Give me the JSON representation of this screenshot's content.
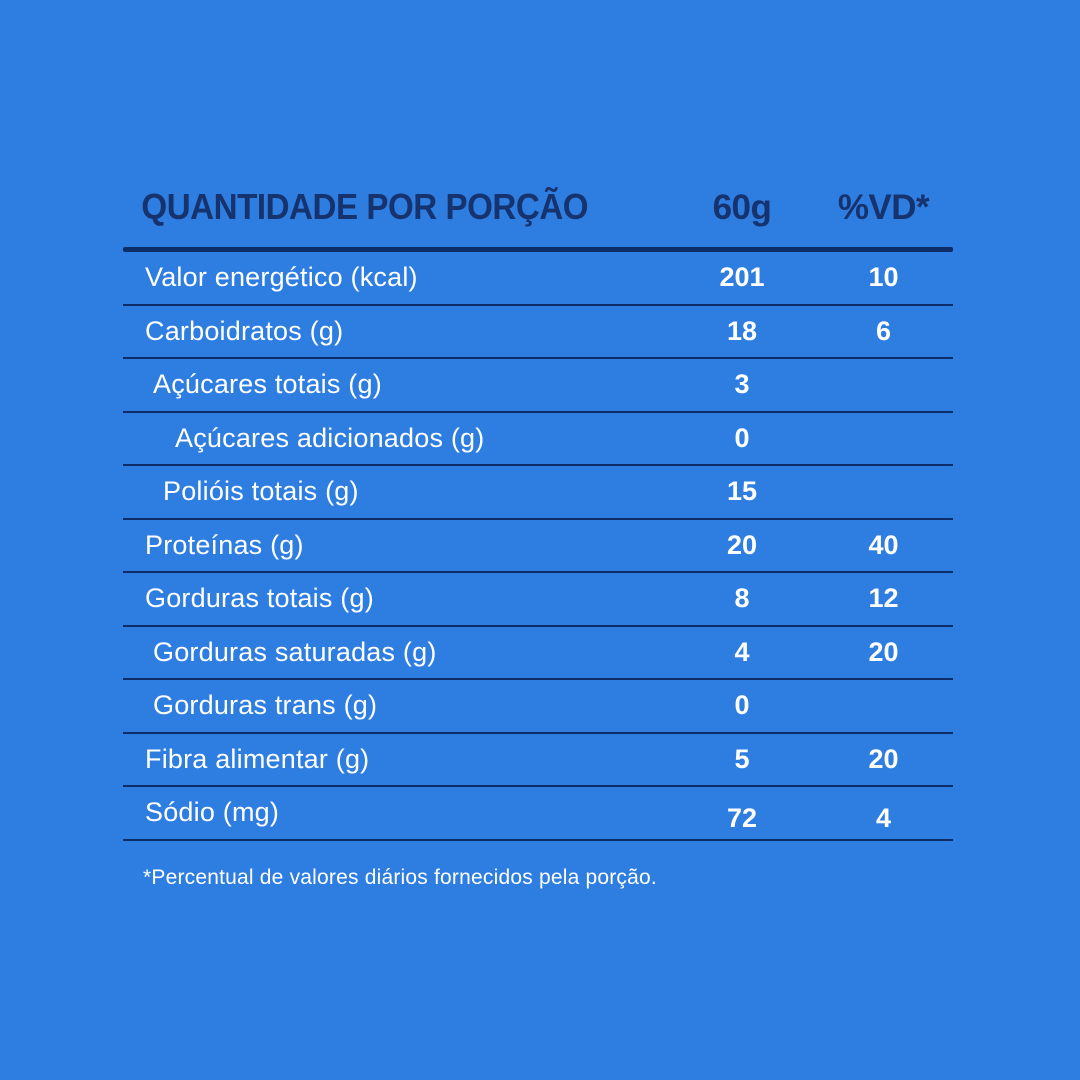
{
  "theme": {
    "background": "#2e7de1",
    "divider_color": "#0c2d67",
    "header_text_color": "#16336e",
    "body_text_color": "#ffffff"
  },
  "header": {
    "title": "QUANTIDADE POR PORÇÃO",
    "serving_column": "60g",
    "daily_value_column": "%VD*"
  },
  "rows": [
    {
      "label": "Valor energético (kcal)",
      "amount": "201",
      "daily_value": "10",
      "level": 0
    },
    {
      "label": "Carboidratos (g)",
      "amount": "18",
      "daily_value": "6",
      "level": 0
    },
    {
      "label": "Açúcares totais (g)",
      "amount": "3",
      "daily_value": "",
      "level": 1
    },
    {
      "label": "Açúcares adicionados (g)",
      "amount": "0",
      "daily_value": "",
      "level": 3
    },
    {
      "label": "Polióis totais (g)",
      "amount": "15",
      "daily_value": "",
      "level": 2
    },
    {
      "label": "Proteínas (g)",
      "amount": "20",
      "daily_value": "40",
      "level": 0
    },
    {
      "label": "Gorduras totais (g)",
      "amount": "8",
      "daily_value": "12",
      "level": 0
    },
    {
      "label": "Gorduras saturadas (g)",
      "amount": "4",
      "daily_value": "20",
      "level": 1
    },
    {
      "label": "Gorduras trans (g)",
      "amount": "0",
      "daily_value": "",
      "level": 1
    },
    {
      "label": "Fibra alimentar (g)",
      "amount": "5",
      "daily_value": "20",
      "level": 0
    },
    {
      "label": "Sódio (mg)",
      "amount": "72",
      "daily_value": "4",
      "level": 0
    }
  ],
  "footnote": "*Percentual de valores diários fornecidos pela porção."
}
